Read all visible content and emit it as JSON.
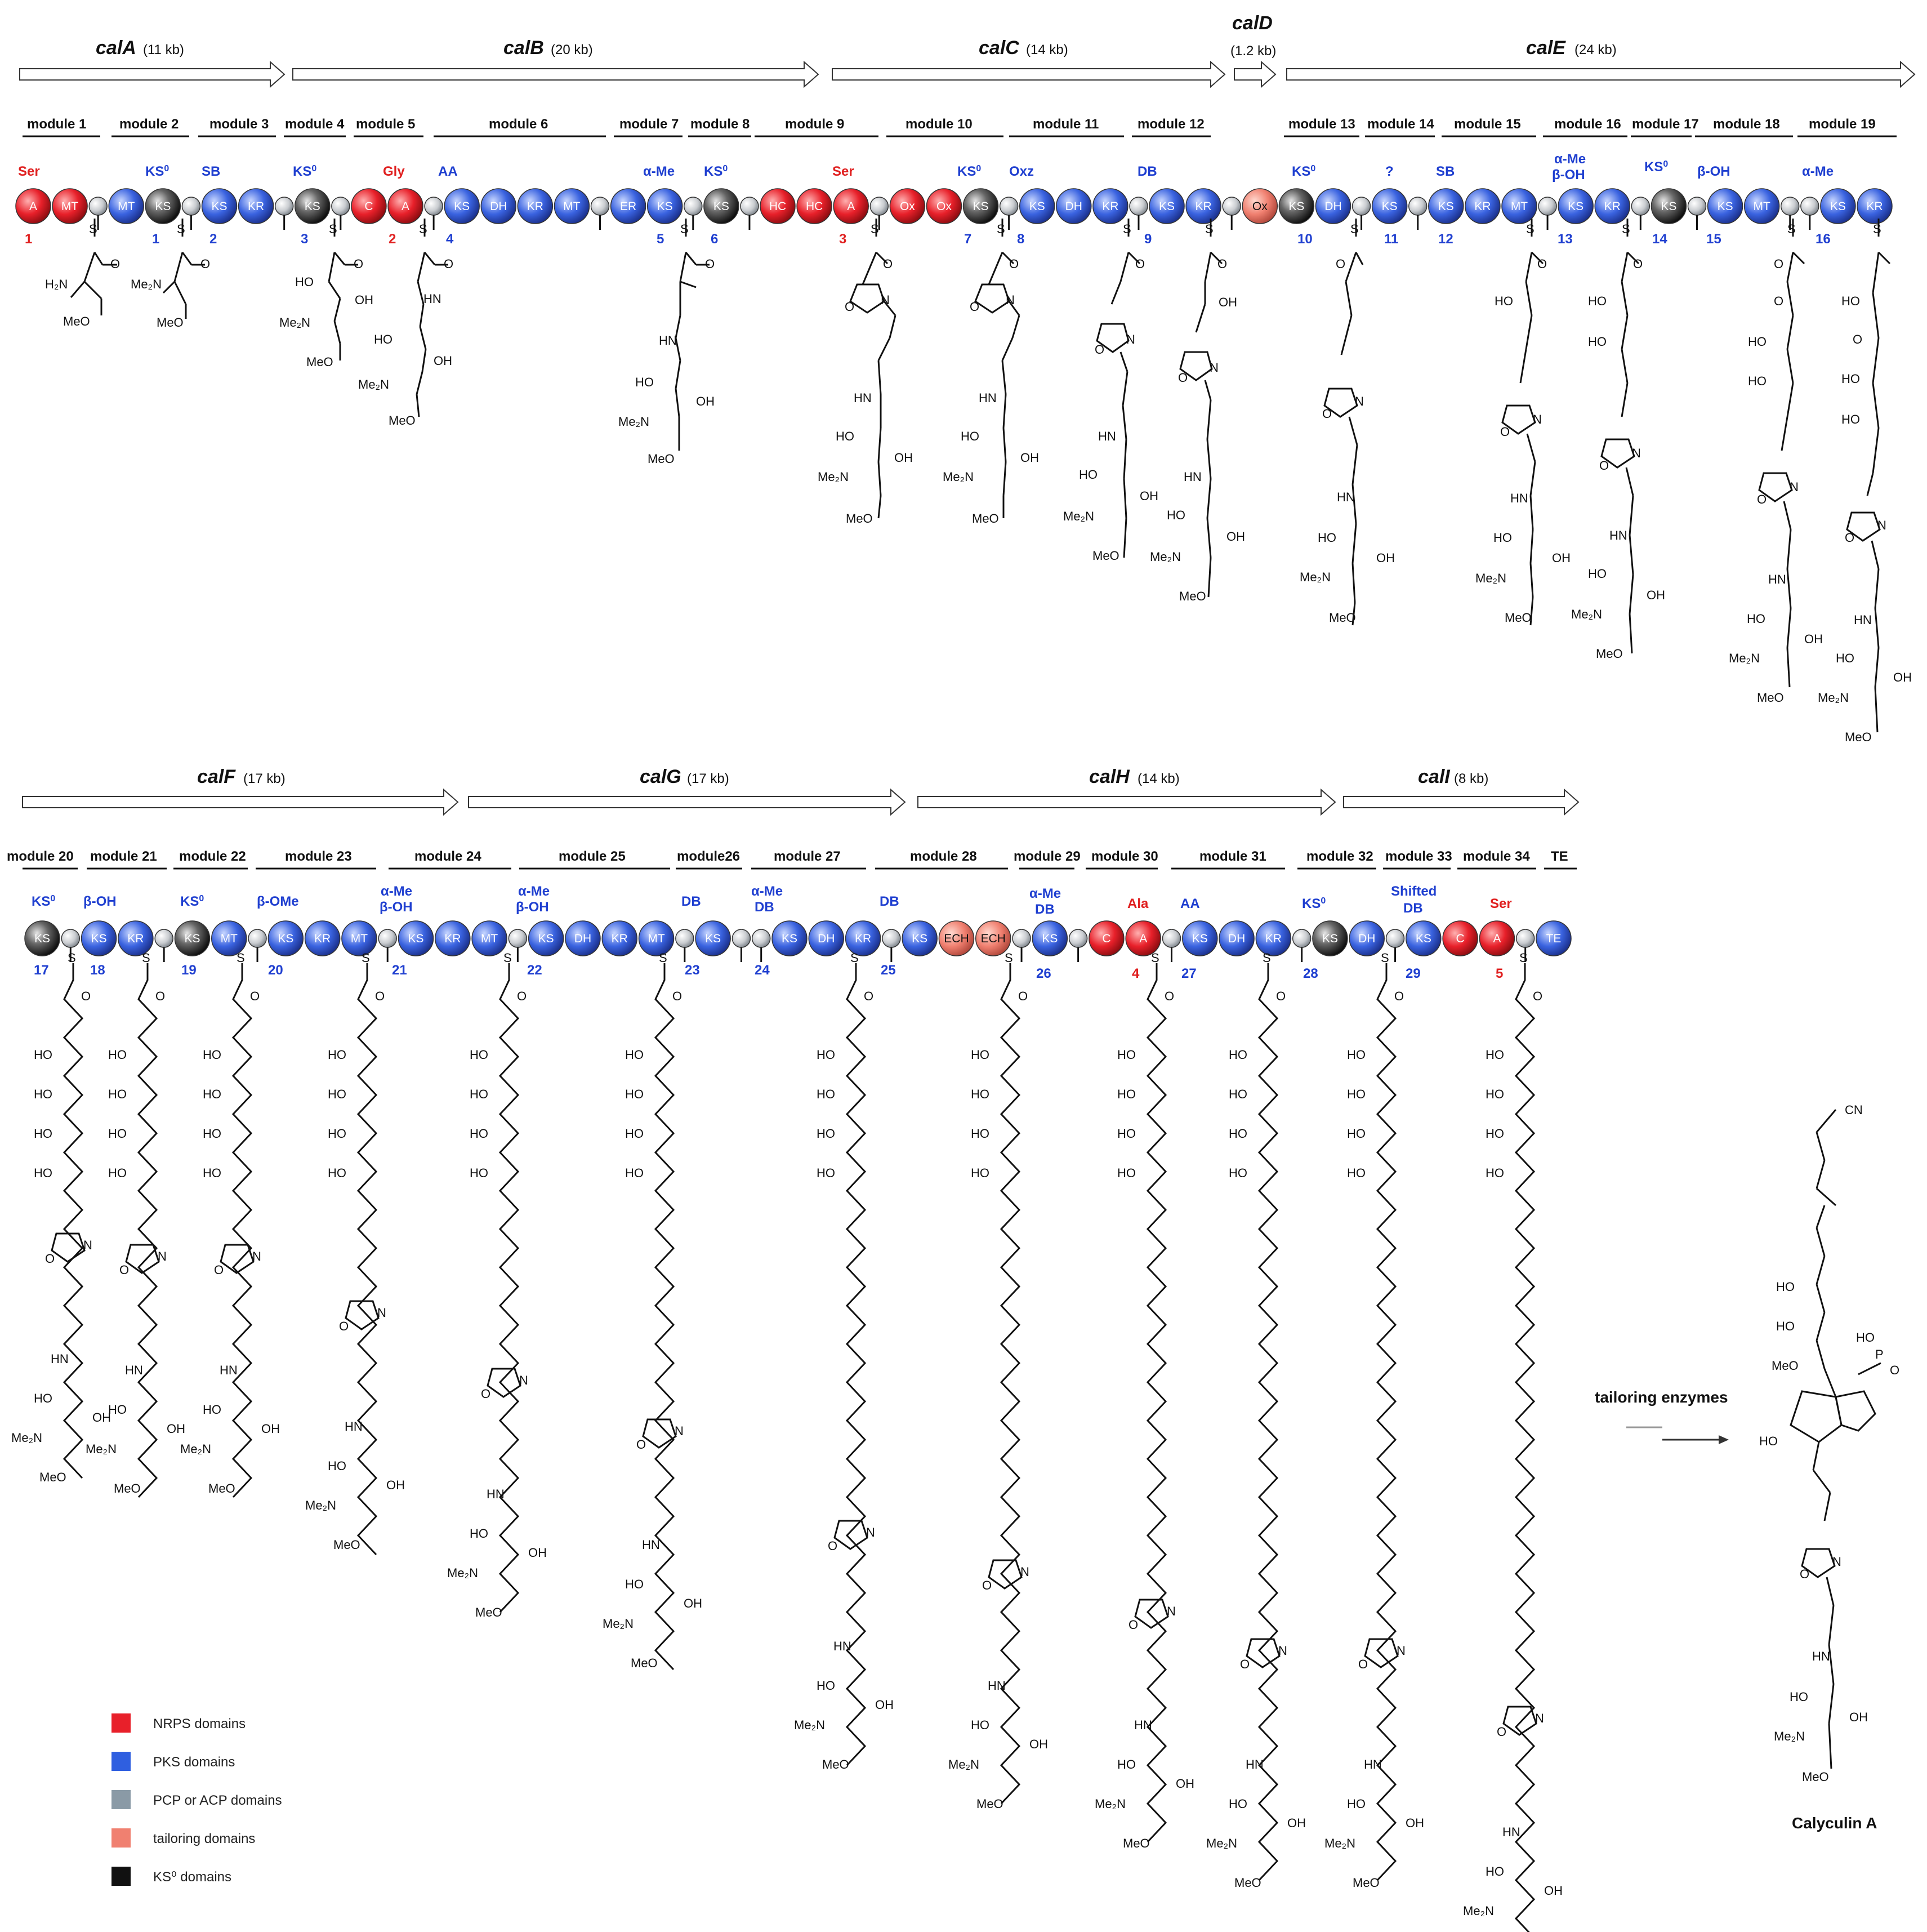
{
  "genes": [
    {
      "name": "calA",
      "size": "(11 kb)"
    },
    {
      "name": "calB",
      "size": "(20 kb)"
    },
    {
      "name": "calC",
      "size": "(14 kb)"
    },
    {
      "name": "calD",
      "size": "(1.2 kb)"
    },
    {
      "name": "calE",
      "size": "(24 kb)"
    },
    {
      "name": "calF",
      "size": "(17 kb)"
    },
    {
      "name": "calG",
      "size": "(17 kb)"
    },
    {
      "name": "calH",
      "size": "(14 kb)"
    },
    {
      "name": "calI",
      "size": "(8 kb)"
    }
  ],
  "modules": [
    "module 1",
    "module 2",
    "module 3",
    "module 4",
    "module 5",
    "module 6",
    "module 7",
    "module 8",
    "module 9",
    "module 10",
    "module 11",
    "module 12",
    "module 13",
    "module 14",
    "module 15",
    "module 16",
    "module 17",
    "module 18",
    "module 19",
    "module 20",
    "module 21",
    "module 22",
    "module 23",
    "module 24",
    "module 25",
    "module26",
    "module 27",
    "module 28",
    "module 29",
    "module 30",
    "module 31",
    "module 32",
    "module 33",
    "module 34",
    "TE"
  ],
  "row1_domains": [
    {
      "label": "A",
      "type": "nrps"
    },
    {
      "label": "MT",
      "type": "nrps"
    },
    {
      "label": "",
      "type": "pcp"
    },
    {
      "label": "MT",
      "type": "pks"
    },
    {
      "label": "KS",
      "type": "ks0"
    },
    {
      "label": "",
      "type": "pcp"
    },
    {
      "label": "KS",
      "type": "pks"
    },
    {
      "label": "KR",
      "type": "pks"
    },
    {
      "label": "",
      "type": "pcp"
    },
    {
      "label": "KS",
      "type": "ks0"
    },
    {
      "label": "",
      "type": "pcp"
    },
    {
      "label": "C",
      "type": "nrps"
    },
    {
      "label": "A",
      "type": "nrps"
    },
    {
      "label": "",
      "type": "pcp"
    },
    {
      "label": "KS",
      "type": "pks"
    },
    {
      "label": "DH",
      "type": "pks"
    },
    {
      "label": "KR",
      "type": "pks"
    },
    {
      "label": "MT",
      "type": "pks"
    },
    {
      "label": "",
      "type": "pcp"
    },
    {
      "label": "ER",
      "type": "pks"
    },
    {
      "label": "KS",
      "type": "pks"
    },
    {
      "label": "",
      "type": "pcp"
    },
    {
      "label": "KS",
      "type": "ks0"
    },
    {
      "label": "",
      "type": "pcp"
    },
    {
      "label": "HC",
      "type": "nrps"
    },
    {
      "label": "HC",
      "type": "nrps"
    },
    {
      "label": "A",
      "type": "nrps"
    },
    {
      "label": "",
      "type": "pcp"
    },
    {
      "label": "Ox",
      "type": "nrps"
    },
    {
      "label": "Ox",
      "type": "nrps"
    },
    {
      "label": "KS",
      "type": "ks0"
    },
    {
      "label": "",
      "type": "pcp"
    },
    {
      "label": "KS",
      "type": "pks"
    },
    {
      "label": "DH",
      "type": "pks"
    },
    {
      "label": "KR",
      "type": "pks"
    },
    {
      "label": "",
      "type": "pcp"
    },
    {
      "label": "KS",
      "type": "pks"
    },
    {
      "label": "KR",
      "type": "pks"
    },
    {
      "label": "",
      "type": "pcp"
    },
    {
      "label": "Ox",
      "type": "tailor"
    },
    {
      "label": "KS",
      "type": "ks0"
    },
    {
      "label": "DH",
      "type": "pks"
    },
    {
      "label": "",
      "type": "pcp"
    },
    {
      "label": "KS",
      "type": "pks"
    },
    {
      "label": "",
      "type": "pcp"
    },
    {
      "label": "KS",
      "type": "pks"
    },
    {
      "label": "KR",
      "type": "pks"
    },
    {
      "label": "MT",
      "type": "pks"
    },
    {
      "label": "",
      "type": "pcp"
    },
    {
      "label": "KS",
      "type": "pks"
    },
    {
      "label": "KR",
      "type": "pks"
    },
    {
      "label": "",
      "type": "pcp"
    },
    {
      "label": "KS",
      "type": "ks0"
    },
    {
      "label": "",
      "type": "pcp"
    },
    {
      "label": "KS",
      "type": "pks"
    },
    {
      "label": "MT",
      "type": "pks"
    },
    {
      "label": "",
      "type": "pcp"
    },
    {
      "label": "",
      "type": "pcp"
    },
    {
      "label": "KS",
      "type": "pks"
    },
    {
      "label": "KR",
      "type": "pks"
    }
  ],
  "row2_domains": [
    {
      "label": "KS",
      "type": "ks0"
    },
    {
      "label": "",
      "type": "pcp"
    },
    {
      "label": "KS",
      "type": "pks"
    },
    {
      "label": "KR",
      "type": "pks"
    },
    {
      "label": "",
      "type": "pcp"
    },
    {
      "label": "KS",
      "type": "ks0"
    },
    {
      "label": "MT",
      "type": "pks"
    },
    {
      "label": "",
      "type": "pcp"
    },
    {
      "label": "KS",
      "type": "pks"
    },
    {
      "label": "KR",
      "type": "pks"
    },
    {
      "label": "MT",
      "type": "pks"
    },
    {
      "label": "",
      "type": "pcp"
    },
    {
      "label": "KS",
      "type": "pks"
    },
    {
      "label": "KR",
      "type": "pks"
    },
    {
      "label": "MT",
      "type": "pks"
    },
    {
      "label": "",
      "type": "pcp"
    },
    {
      "label": "KS",
      "type": "pks"
    },
    {
      "label": "DH",
      "type": "pks"
    },
    {
      "label": "KR",
      "type": "pks"
    },
    {
      "label": "MT",
      "type": "pks"
    },
    {
      "label": "",
      "type": "pcp"
    },
    {
      "label": "KS",
      "type": "pks"
    },
    {
      "label": "",
      "type": "pcp"
    },
    {
      "label": "",
      "type": "pcp"
    },
    {
      "label": "KS",
      "type": "pks"
    },
    {
      "label": "DH",
      "type": "pks"
    },
    {
      "label": "KR",
      "type": "pks"
    },
    {
      "label": "",
      "type": "pcp"
    },
    {
      "label": "KS",
      "type": "pks"
    },
    {
      "label": "ECH",
      "type": "tailor"
    },
    {
      "label": "ECH",
      "type": "tailor"
    },
    {
      "label": "",
      "type": "pcp"
    },
    {
      "label": "KS",
      "type": "pks"
    },
    {
      "label": "",
      "type": "pcp"
    },
    {
      "label": "C",
      "type": "nrps"
    },
    {
      "label": "A",
      "type": "nrps"
    },
    {
      "label": "",
      "type": "pcp"
    },
    {
      "label": "KS",
      "type": "pks"
    },
    {
      "label": "DH",
      "type": "pks"
    },
    {
      "label": "KR",
      "type": "pks"
    },
    {
      "label": "",
      "type": "pcp"
    },
    {
      "label": "KS",
      "type": "ks0"
    },
    {
      "label": "DH",
      "type": "pks"
    },
    {
      "label": "",
      "type": "pcp"
    },
    {
      "label": "KS",
      "type": "pks"
    },
    {
      "label": "C",
      "type": "nrps"
    },
    {
      "label": "A",
      "type": "nrps"
    },
    {
      "label": "",
      "type": "pcp"
    },
    {
      "label": "TE",
      "type": "pks"
    }
  ],
  "annotations_row1": [
    {
      "text": "Ser",
      "color": "red"
    },
    {
      "text": "KS0",
      "color": "blue"
    },
    {
      "text": "SB",
      "color": "blue"
    },
    {
      "text": "KS0",
      "color": "blue"
    },
    {
      "text": "Gly",
      "color": "red"
    },
    {
      "text": "AA",
      "color": "blue"
    },
    {
      "text": "α-Me",
      "color": "blue"
    },
    {
      "text": "KS0",
      "color": "blue"
    },
    {
      "text": "Ser",
      "color": "red"
    },
    {
      "text": "KS0",
      "color": "blue"
    },
    {
      "text": "Oxz",
      "color": "blue"
    },
    {
      "text": "DB",
      "color": "blue"
    },
    {
      "text": "KS0",
      "color": "blue"
    },
    {
      "text": "?",
      "color": "blue"
    },
    {
      "text": "SB",
      "color": "blue"
    },
    {
      "text": "α-Me",
      "color": "blue"
    },
    {
      "text": "β-OH",
      "color": "blue"
    },
    {
      "text": "KS0",
      "color": "blue"
    },
    {
      "text": "β-OH",
      "color": "blue"
    },
    {
      "text": "α-Me",
      "color": "blue"
    }
  ],
  "annotations_row2": [
    {
      "text": "KS0",
      "color": "blue"
    },
    {
      "text": "β-OH",
      "color": "blue"
    },
    {
      "text": "KS0",
      "color": "blue"
    },
    {
      "text": "β-OMe",
      "color": "blue"
    },
    {
      "text": "α-Me",
      "color": "blue"
    },
    {
      "text": "β-OH",
      "color": "blue"
    },
    {
      "text": "α-Me",
      "color": "blue"
    },
    {
      "text": "β-OH",
      "color": "blue"
    },
    {
      "text": "DB",
      "color": "blue"
    },
    {
      "text": "α-Me",
      "color": "blue"
    },
    {
      "text": "DB",
      "color": "blue"
    },
    {
      "text": "DB",
      "color": "blue"
    },
    {
      "text": "α-Me",
      "color": "blue"
    },
    {
      "text": "DB",
      "color": "blue"
    },
    {
      "text": "Ala",
      "color": "red"
    },
    {
      "text": "AA",
      "color": "blue"
    },
    {
      "text": "KS0",
      "color": "blue"
    },
    {
      "text": "Shifted",
      "color": "blue"
    },
    {
      "text": "DB",
      "color": "blue"
    },
    {
      "text": "Ser",
      "color": "red"
    }
  ],
  "numbers_row1": [
    {
      "text": "1",
      "color": "red"
    },
    {
      "text": "1",
      "color": "blue"
    },
    {
      "text": "2",
      "color": "blue"
    },
    {
      "text": "3",
      "color": "blue"
    },
    {
      "text": "2",
      "color": "red"
    },
    {
      "text": "4",
      "color": "blue"
    },
    {
      "text": "5",
      "color": "blue"
    },
    {
      "text": "6",
      "color": "blue"
    },
    {
      "text": "3",
      "color": "red"
    },
    {
      "text": "7",
      "color": "blue"
    },
    {
      "text": "8",
      "color": "blue"
    },
    {
      "text": "9",
      "color": "blue"
    },
    {
      "text": "10",
      "color": "blue"
    },
    {
      "text": "11",
      "color": "blue"
    },
    {
      "text": "12",
      "color": "blue"
    },
    {
      "text": "13",
      "color": "blue"
    },
    {
      "text": "14",
      "color": "blue"
    },
    {
      "text": "15",
      "color": "blue"
    },
    {
      "text": "16",
      "color": "blue"
    }
  ],
  "numbers_row2": [
    {
      "text": "17",
      "color": "blue"
    },
    {
      "text": "18",
      "color": "blue"
    },
    {
      "text": "19",
      "color": "blue"
    },
    {
      "text": "20",
      "color": "blue"
    },
    {
      "text": "21",
      "color": "blue"
    },
    {
      "text": "22",
      "color": "blue"
    },
    {
      "text": "23",
      "color": "blue"
    },
    {
      "text": "24",
      "color": "blue"
    },
    {
      "text": "25",
      "color": "blue"
    },
    {
      "text": "26",
      "color": "blue"
    },
    {
      "text": "4",
      "color": "red"
    },
    {
      "text": "27",
      "color": "blue"
    },
    {
      "text": "28",
      "color": "blue"
    },
    {
      "text": "29",
      "color": "blue"
    },
    {
      "text": "5",
      "color": "red"
    }
  ],
  "chem_labels": {
    "h2n": "H₂N",
    "me2n": "Me₂N",
    "meo": "MeO",
    "ho": "HO",
    "oh": "OH",
    "o": "O",
    "s": "S",
    "n": "N",
    "hn": "HN",
    "nh": "NH",
    "cn": "CN",
    "p": "P"
  },
  "legend": [
    {
      "label": "NRPS domains",
      "color": "#e8202a"
    },
    {
      "label": "PKS domains",
      "color": "#2f5fe0"
    },
    {
      "label": "PCP or ACP domains",
      "color": "#8a9aa6"
    },
    {
      "label": "tailoring domains",
      "color": "#f08070"
    },
    {
      "label": "KS⁰ domains",
      "color": "#111111"
    }
  ],
  "tailoring_label": "tailoring enzymes",
  "final_product": "Calyculin A",
  "colors": {
    "nrps": "#e8202a",
    "pks": "#2f5fe0",
    "pcp": "#c9ccd0",
    "tailor": "#f08070",
    "ks0": "#222222",
    "blue_text": "#1f3fd0",
    "red_text": "#e02020"
  }
}
